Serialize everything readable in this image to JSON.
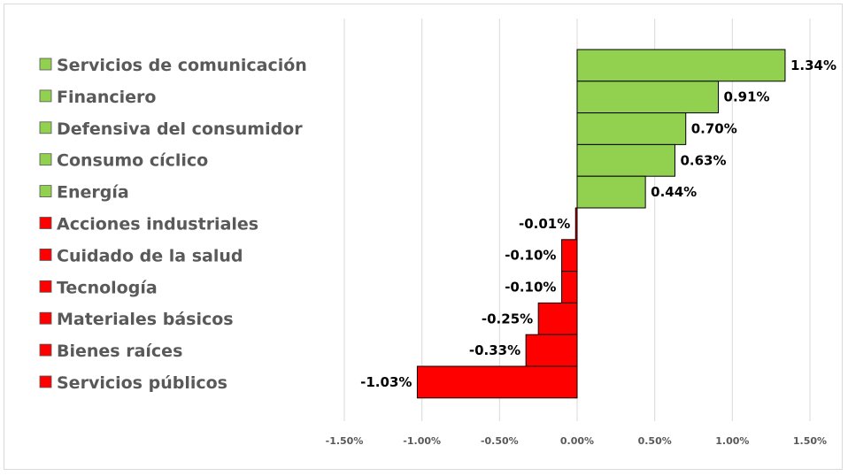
{
  "chart_data": {
    "type": "bar",
    "orientation": "horizontal",
    "categories": [
      "Servicios de comunicación",
      "Financiero",
      "Defensiva del consumidor",
      "Consumo cíclico",
      "Energía",
      "Acciones industriales",
      "Cuidado de la salud",
      "Tecnología",
      "Materiales básicos",
      "Bienes raíces",
      "Servicios públicos"
    ],
    "values": [
      1.34,
      0.91,
      0.7,
      0.63,
      0.44,
      -0.01,
      -0.1,
      -0.1,
      -0.25,
      -0.33,
      -1.03
    ],
    "value_labels": [
      "1.34%",
      "0.91%",
      "0.70%",
      "0.63%",
      "0.44%",
      "-0.01%",
      "-0.10%",
      "-0.10%",
      "-0.25%",
      "-0.33%",
      "-1.03%"
    ],
    "xlim": [
      -1.5,
      1.5
    ],
    "xticks": [
      -1.5,
      -1.0,
      -0.5,
      0.0,
      0.5,
      1.0,
      1.5
    ],
    "xtick_labels": [
      "-1.50%",
      "-1.00%",
      "-0.50%",
      "0.00%",
      "0.50%",
      "1.00%",
      "1.50%"
    ],
    "grid": "vertical",
    "legend": "left",
    "colors": {
      "positive": "#92d050",
      "negative": "#ff0000",
      "edge": "#000000",
      "grid": "#d9d9d9"
    },
    "title": "",
    "xlabel": "",
    "ylabel": ""
  }
}
